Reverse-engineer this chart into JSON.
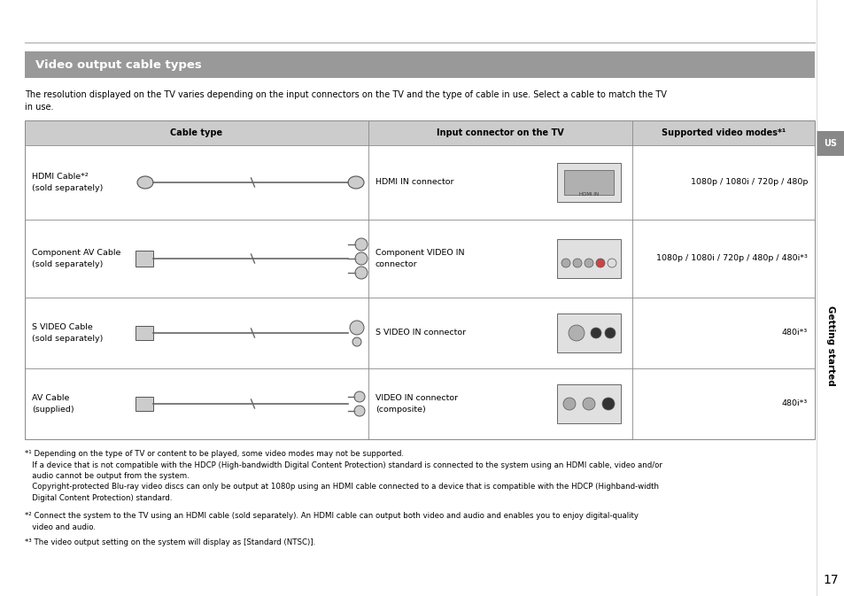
{
  "page_bg": "#ffffff",
  "header_bg": "#999999",
  "header_text": "Video output cable types",
  "header_text_color": "#ffffff",
  "body_text": "The resolution displayed on the TV varies depending on the input connectors on the TV and the type of cable in use. Select a cable to match the TV\nin use.",
  "table_header_bg": "#cccccc",
  "table_border_color": "#888888",
  "col_headers": [
    "Cable type",
    "Input connector on the TV",
    "Supported video modes*¹"
  ],
  "rows": [
    {
      "cable": "HDMI Cable*²\n(sold separately)",
      "connector": "HDMI IN connector",
      "modes": "1080p / 1080i / 720p / 480p"
    },
    {
      "cable": "Component AV Cable\n(sold separately)",
      "connector": "Component VIDEO IN\nconnector",
      "modes": "1080p / 1080i / 720p / 480p / 480i*³"
    },
    {
      "cable": "S VIDEO Cable\n(sold separately)",
      "connector": "S VIDEO IN connector",
      "modes": "480i*³"
    },
    {
      "cable": "AV Cable\n(supplied)",
      "connector": "VIDEO IN connector\n(composite)",
      "modes": "480i*³"
    }
  ],
  "footnote1_marker": "*¹",
  "footnote1_line1": " Depending on the type of TV or content to be played, some video modes may not be supported.",
  "footnote1_line2": "   If a device that is not compatible with the HDCP (High-bandwidth Digital Content Protection) standard is connected to the system using an HDMI cable, video and/or",
  "footnote1_line3": "   audio cannot be output from the system.",
  "footnote1_line4": "   Copyright-protected Blu-ray video discs can only be output at 1080p using an HDMI cable connected to a device that is compatible with the HDCP (Highband-width",
  "footnote1_line5": "   Digital Content Protection) standard.",
  "footnote2_marker": "*²",
  "footnote2_line1": " Connect the system to the TV using an HDMI cable (sold separately). An HDMI cable can output both video and audio and enables you to enjoy digital-quality",
  "footnote2_line2": "   video and audio.",
  "footnote3_marker": "*³",
  "footnote3_line1": " The video output setting on the system will display as [Standard (NTSC)].",
  "sidebar_us_bg": "#888888",
  "sidebar_us_text": "US",
  "sidebar_label": "Getting started",
  "page_number": "17"
}
